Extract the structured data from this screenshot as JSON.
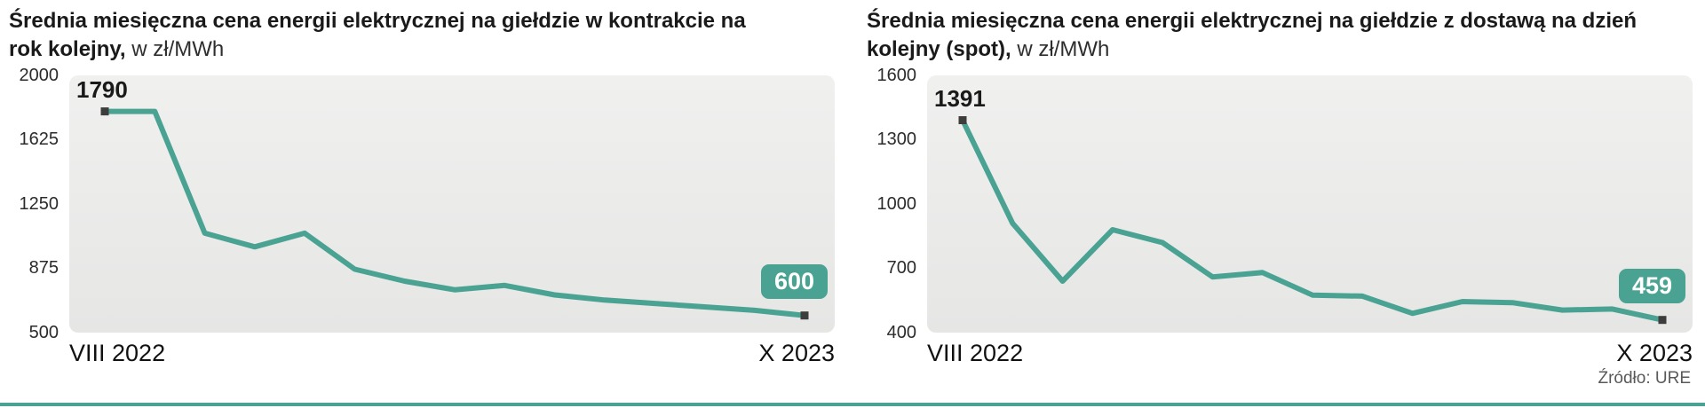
{
  "page": {
    "source": "Źródło: URE",
    "accent_color": "#4aa392",
    "marker_color": "#3d3d3c"
  },
  "chart_data": [
    {
      "type": "line",
      "title": "Średnia miesięczna cena energii elektrycznej na giełdzie w kontrakcie na rok kolejny,",
      "unit": "w zł/MWh",
      "x_start_label": "VIII 2022",
      "x_end_label": "X 2023",
      "y_ticks": [
        "2000",
        "1625",
        "1250",
        "875",
        "500"
      ],
      "ylim": [
        500,
        2000
      ],
      "values": [
        1790,
        1790,
        1080,
        1000,
        1080,
        870,
        800,
        750,
        775,
        720,
        690,
        670,
        650,
        630,
        600
      ],
      "first_value_label": "1790",
      "last_value_label": "600",
      "line_color": "#4aa392",
      "grid": false,
      "legend": false
    },
    {
      "type": "line",
      "title": "Średnia miesięczna cena energii elektrycznej na giełdzie z dostawą na dzień kolejny (spot),",
      "unit": "w zł/MWh",
      "x_start_label": "VIII 2022",
      "x_end_label": "X 2023",
      "y_ticks": [
        "1600",
        "1300",
        "1000",
        "700",
        "400"
      ],
      "ylim": [
        400,
        1600
      ],
      "values": [
        1391,
        910,
        640,
        880,
        820,
        660,
        680,
        575,
        570,
        490,
        545,
        540,
        505,
        510,
        459
      ],
      "first_value_label": "1391",
      "last_value_label": "459",
      "line_color": "#4aa392",
      "grid": false,
      "legend": false
    }
  ]
}
